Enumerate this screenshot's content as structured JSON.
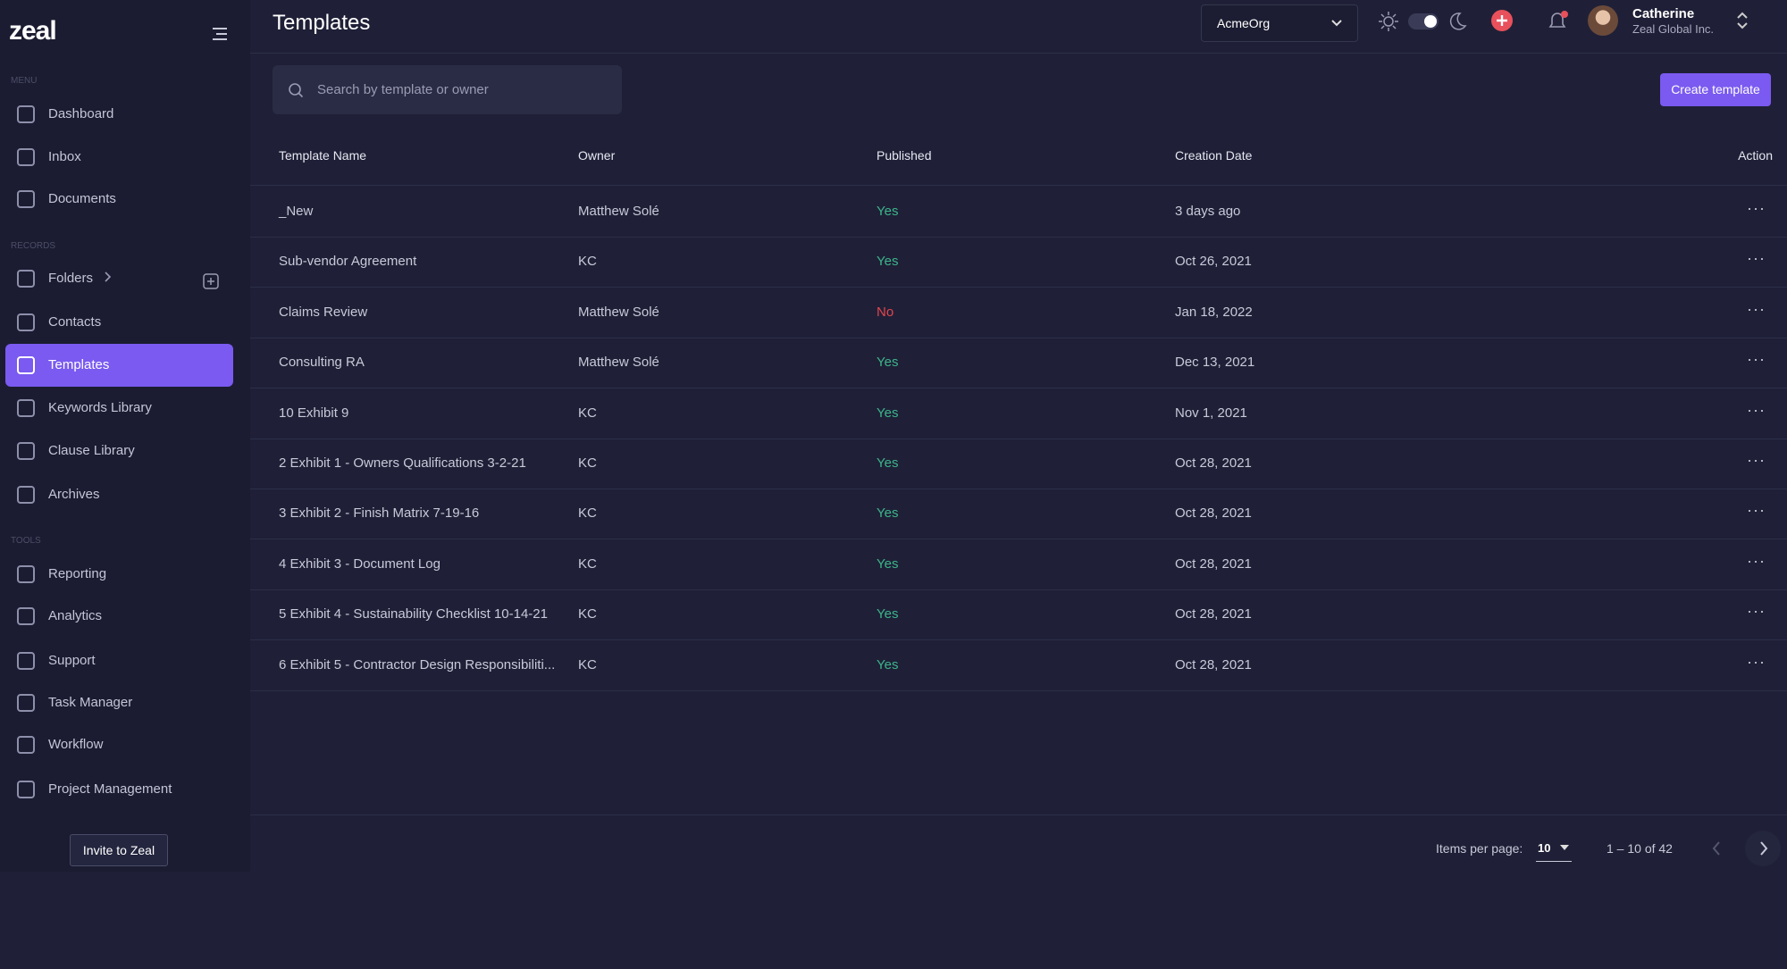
{
  "logo": "zeal",
  "header": {
    "title": "Templates",
    "org": "AcmeOrg",
    "user_name": "Catherine",
    "user_org": "Zeal Global Inc."
  },
  "sidebar": {
    "sections": [
      {
        "label": "MENU",
        "items": [
          {
            "label": "Dashboard"
          },
          {
            "label": "Inbox"
          },
          {
            "label": "Documents"
          }
        ]
      },
      {
        "label": "RECORDS",
        "items": [
          {
            "label": "Folders"
          },
          {
            "label": "Contacts"
          },
          {
            "label": "Templates",
            "active": true
          },
          {
            "label": "Keywords Library"
          },
          {
            "label": "Clause Library"
          },
          {
            "label": "Archives"
          }
        ]
      },
      {
        "label": "TOOLS",
        "items": [
          {
            "label": "Reporting"
          },
          {
            "label": "Analytics"
          },
          {
            "label": "Support"
          },
          {
            "label": "Task Manager"
          },
          {
            "label": "Workflow"
          },
          {
            "label": "Project Management"
          }
        ]
      }
    ],
    "invite": "Invite to Zeal"
  },
  "toolbar": {
    "search_placeholder": "Search by template or owner",
    "create_button": "Create template"
  },
  "table": {
    "columns": [
      "Template Name",
      "Owner",
      "Published",
      "Creation Date",
      "Action"
    ],
    "rows": [
      {
        "name": "_New",
        "owner": "Matthew Solé",
        "published": "Yes",
        "published_color": "#3cb48a",
        "date": "3 days ago"
      },
      {
        "name": "Sub-vendor Agreement",
        "owner": "KC",
        "published": "Yes",
        "published_color": "#3cb48a",
        "date": "Oct 26, 2021"
      },
      {
        "name": "Claims Review",
        "owner": "Matthew Solé",
        "published": "No",
        "published_color": "#e2454f",
        "date": "Jan 18, 2022"
      },
      {
        "name": "Consulting RA",
        "owner": "Matthew Solé",
        "published": "Yes",
        "published_color": "#3cb48a",
        "date": "Dec 13, 2021"
      },
      {
        "name": "10 Exhibit 9",
        "owner": "KC",
        "published": "Yes",
        "published_color": "#3cb48a",
        "date": "Nov 1, 2021"
      },
      {
        "name": "2 Exhibit 1 - Owners Qualifications 3-2-21",
        "owner": "KC",
        "published": "Yes",
        "published_color": "#3cb48a",
        "date": "Oct 28, 2021"
      },
      {
        "name": "3 Exhibit 2 - Finish Matrix 7-19-16",
        "owner": "KC",
        "published": "Yes",
        "published_color": "#3cb48a",
        "date": "Oct 28, 2021"
      },
      {
        "name": "4 Exhibit 3 - Document Log",
        "owner": "KC",
        "published": "Yes",
        "published_color": "#3cb48a",
        "date": "Oct 28, 2021"
      },
      {
        "name": "5 Exhibit 4 - Sustainability Checklist 10-14-21",
        "owner": "KC",
        "published": "Yes",
        "published_color": "#3cb48a",
        "date": "Oct 28, 2021"
      },
      {
        "name": "6 Exhibit 5 - Contractor Design Responsibiliti...",
        "owner": "KC",
        "published": "Yes",
        "published_color": "#3cb48a",
        "date": "Oct 28, 2021"
      }
    ]
  },
  "pagination": {
    "items_per_page_label": "Items per page:",
    "page_size": 10,
    "range": "1 – 10 of 42"
  }
}
